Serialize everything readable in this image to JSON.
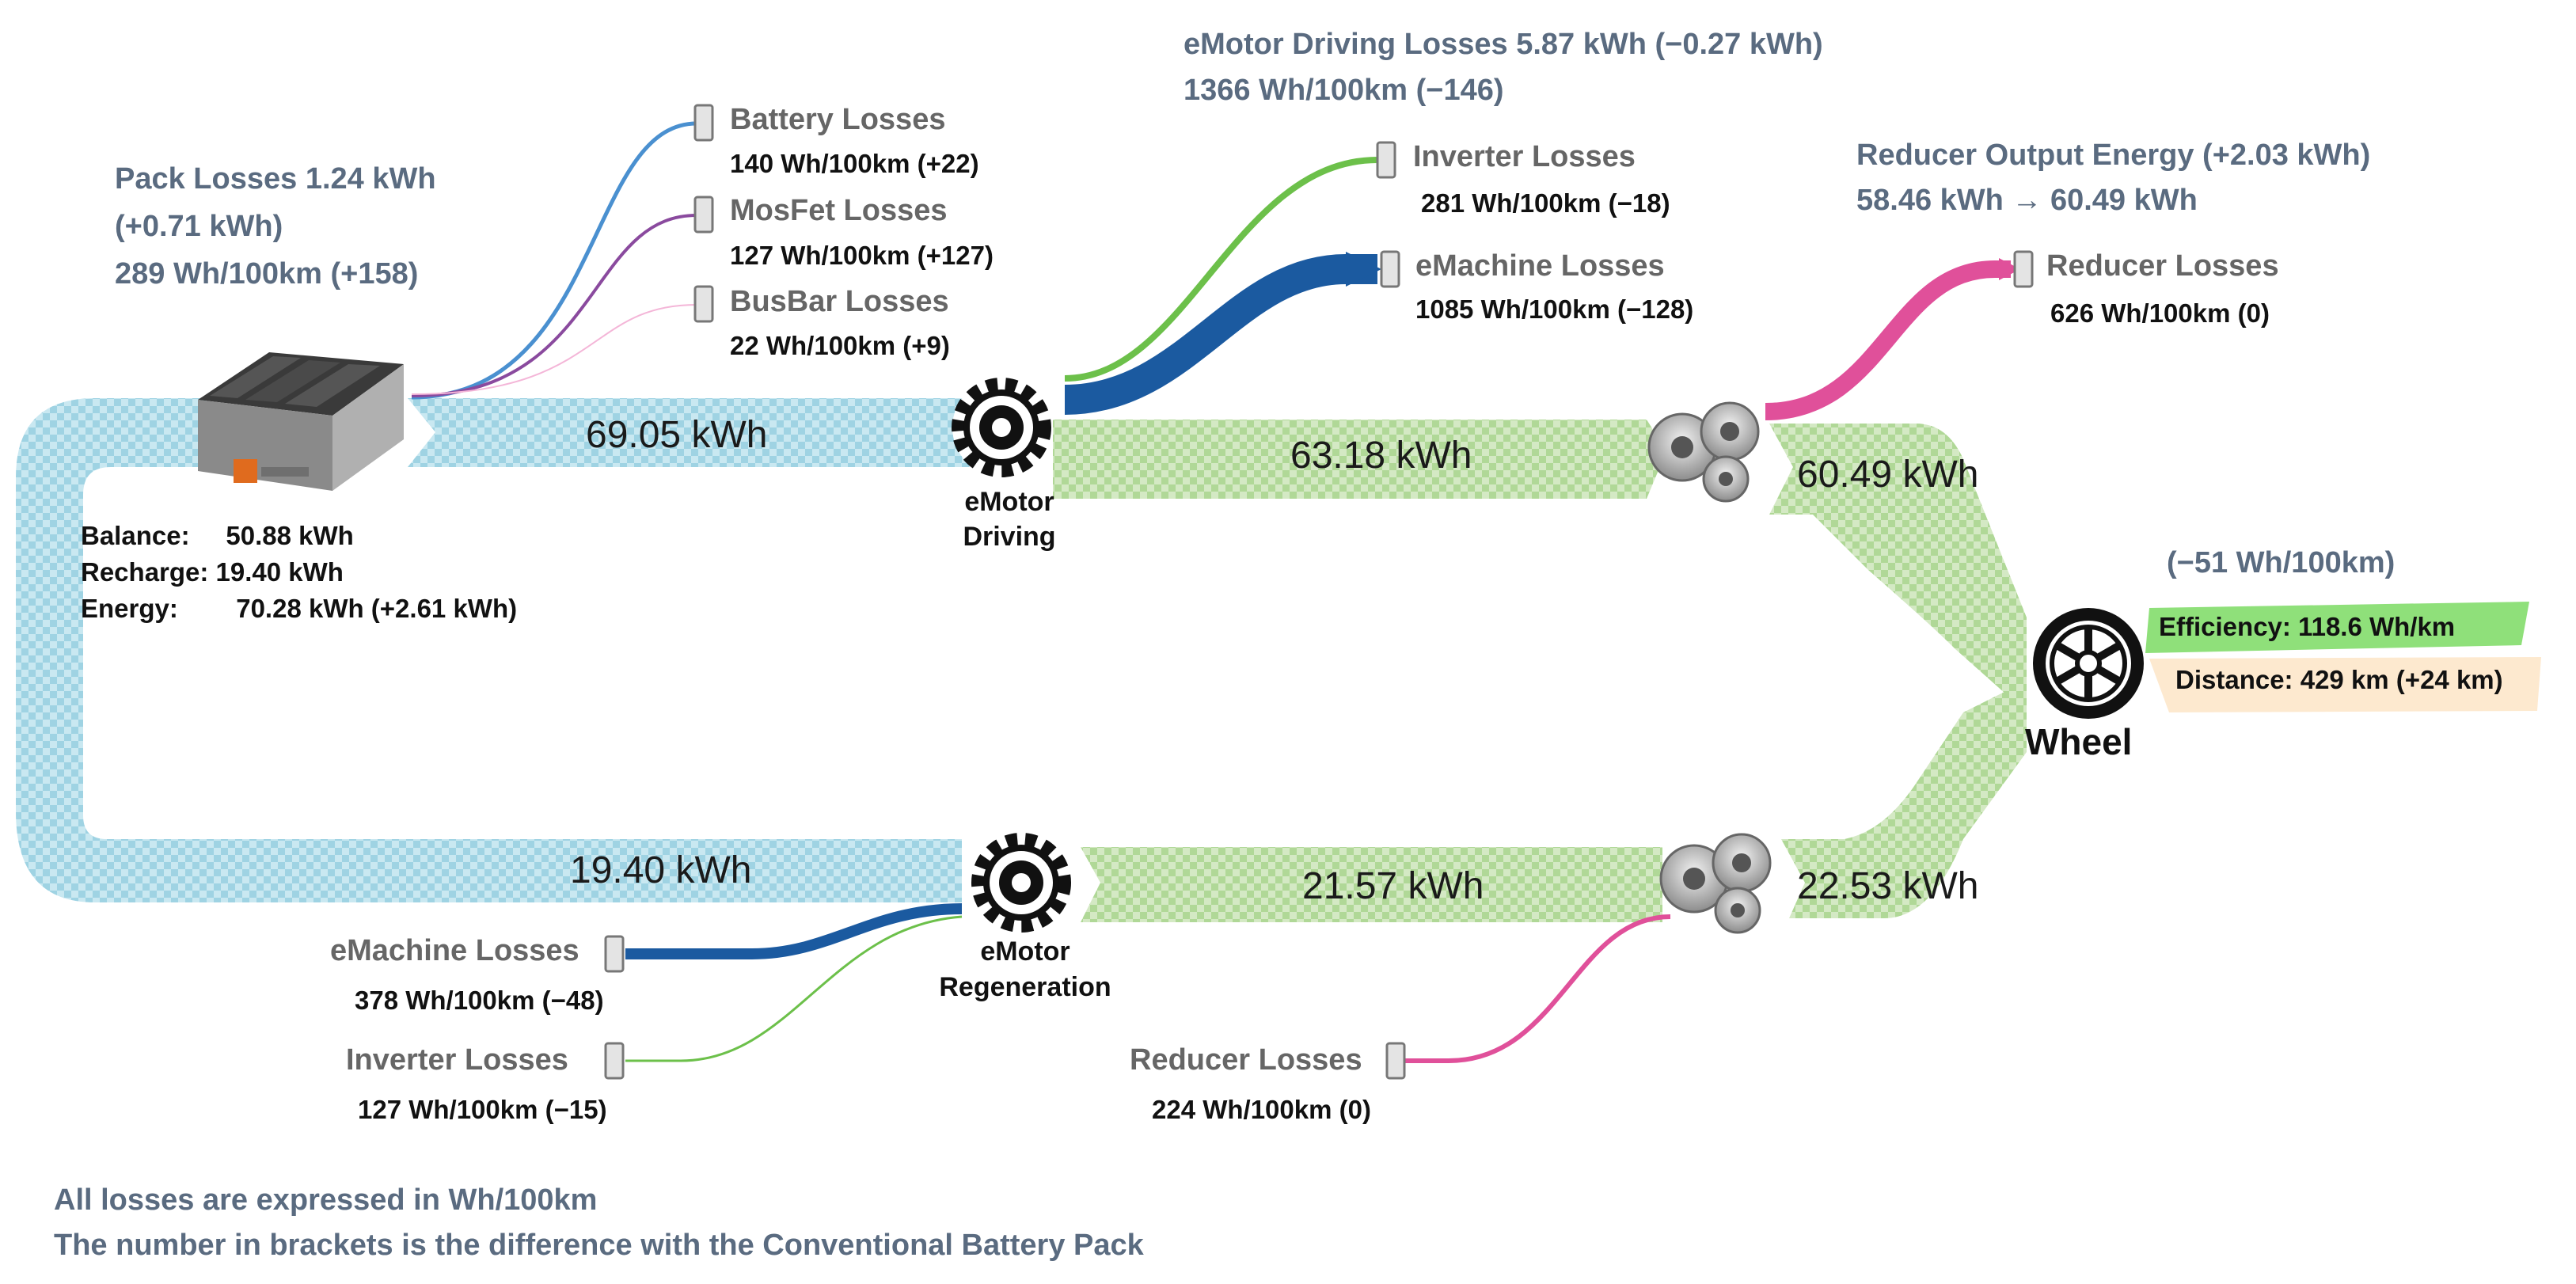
{
  "colors": {
    "battery_flow": "#a8d8e6",
    "driving_flow": "#a9d08e",
    "battery_losses": "#4a90d0",
    "mosfet_losses": "#8a4a9e",
    "busbar_losses": "#f4b6d8",
    "inverter_losses": "#6cc04a",
    "emachine_losses": "#1b5aa0",
    "reducer_losses": "#e0509a",
    "efficiency_highlight": "#8fe07a",
    "distance_highlight": "#fde9cf",
    "label_blue": "#5a6b80"
  },
  "battery": {
    "pack_losses": "Pack Losses 1.24 kWh",
    "pack_losses_delta": "(+0.71 kWh)",
    "pack_losses_rate": "289 Wh/100km (+158)",
    "balance": "Balance:     50.88 kWh",
    "recharge": "Recharge: 19.40 kWh",
    "energy": "Energy:        70.28 kWh (+2.61 kWh)",
    "icon": "battery-pack-icon"
  },
  "pack_loss_items": [
    {
      "label": "Battery Losses",
      "value": "140 Wh/100km (+22)"
    },
    {
      "label": "MosFet Losses",
      "value": "127 Wh/100km (+127)"
    },
    {
      "label": "BusBar Losses",
      "value": "22 Wh/100km (+9)"
    }
  ],
  "emotor_driving": {
    "title_line1": "eMotor Driving Losses 5.87 kWh (−0.27 kWh)",
    "title_line2": "1366 Wh/100km (−146)",
    "node_line1": "eMotor",
    "node_line2": "Driving",
    "inverter_label": "Inverter Losses",
    "inverter_value": "281 Wh/100km (−18)",
    "emachine_label": "eMachine Losses",
    "emachine_value": "1085 Wh/100km (−128)",
    "icon": "emotor-gear-icon"
  },
  "reducer_output": {
    "title_line1": "Reducer Output Energy (+2.03 kWh)",
    "title_line2": "58.46 kWh → 60.49 kWh",
    "losses_label": "Reducer Losses",
    "losses_value": "626 Wh/100km (0)",
    "icon": "gearbox-icon"
  },
  "flows": {
    "battery_to_motor": "69.05 kWh",
    "motor_to_reducer": "63.18 kWh",
    "reducer_to_wheel": "60.49 kWh",
    "regen_to_battery": "19.40 kWh",
    "reducer_to_regen": "21.57 kWh",
    "wheel_to_reducer": "22.53 kWh"
  },
  "wheel": {
    "label": "Wheel",
    "delta": "(−51 Wh/100km)",
    "efficiency": "Efficiency: 118.6 Wh/km",
    "distance": "Distance: 429 km (+24 km)",
    "icon": "wheel-icon"
  },
  "emotor_regen": {
    "node_line1": "eMotor",
    "node_line2": "Regeneration",
    "emachine_label": "eMachine Losses",
    "emachine_value": "378 Wh/100km (−48)",
    "inverter_label": "Inverter Losses",
    "inverter_value": "127 Wh/100km (−15)",
    "icon": "emotor-regen-gear-icon"
  },
  "regen_reducer": {
    "losses_label": "Reducer Losses",
    "losses_value": "224 Wh/100km (0)"
  },
  "footnote": {
    "line1": "All losses are expressed in Wh/100km",
    "line2": "The number in brackets is the difference with the Conventional Battery Pack"
  }
}
